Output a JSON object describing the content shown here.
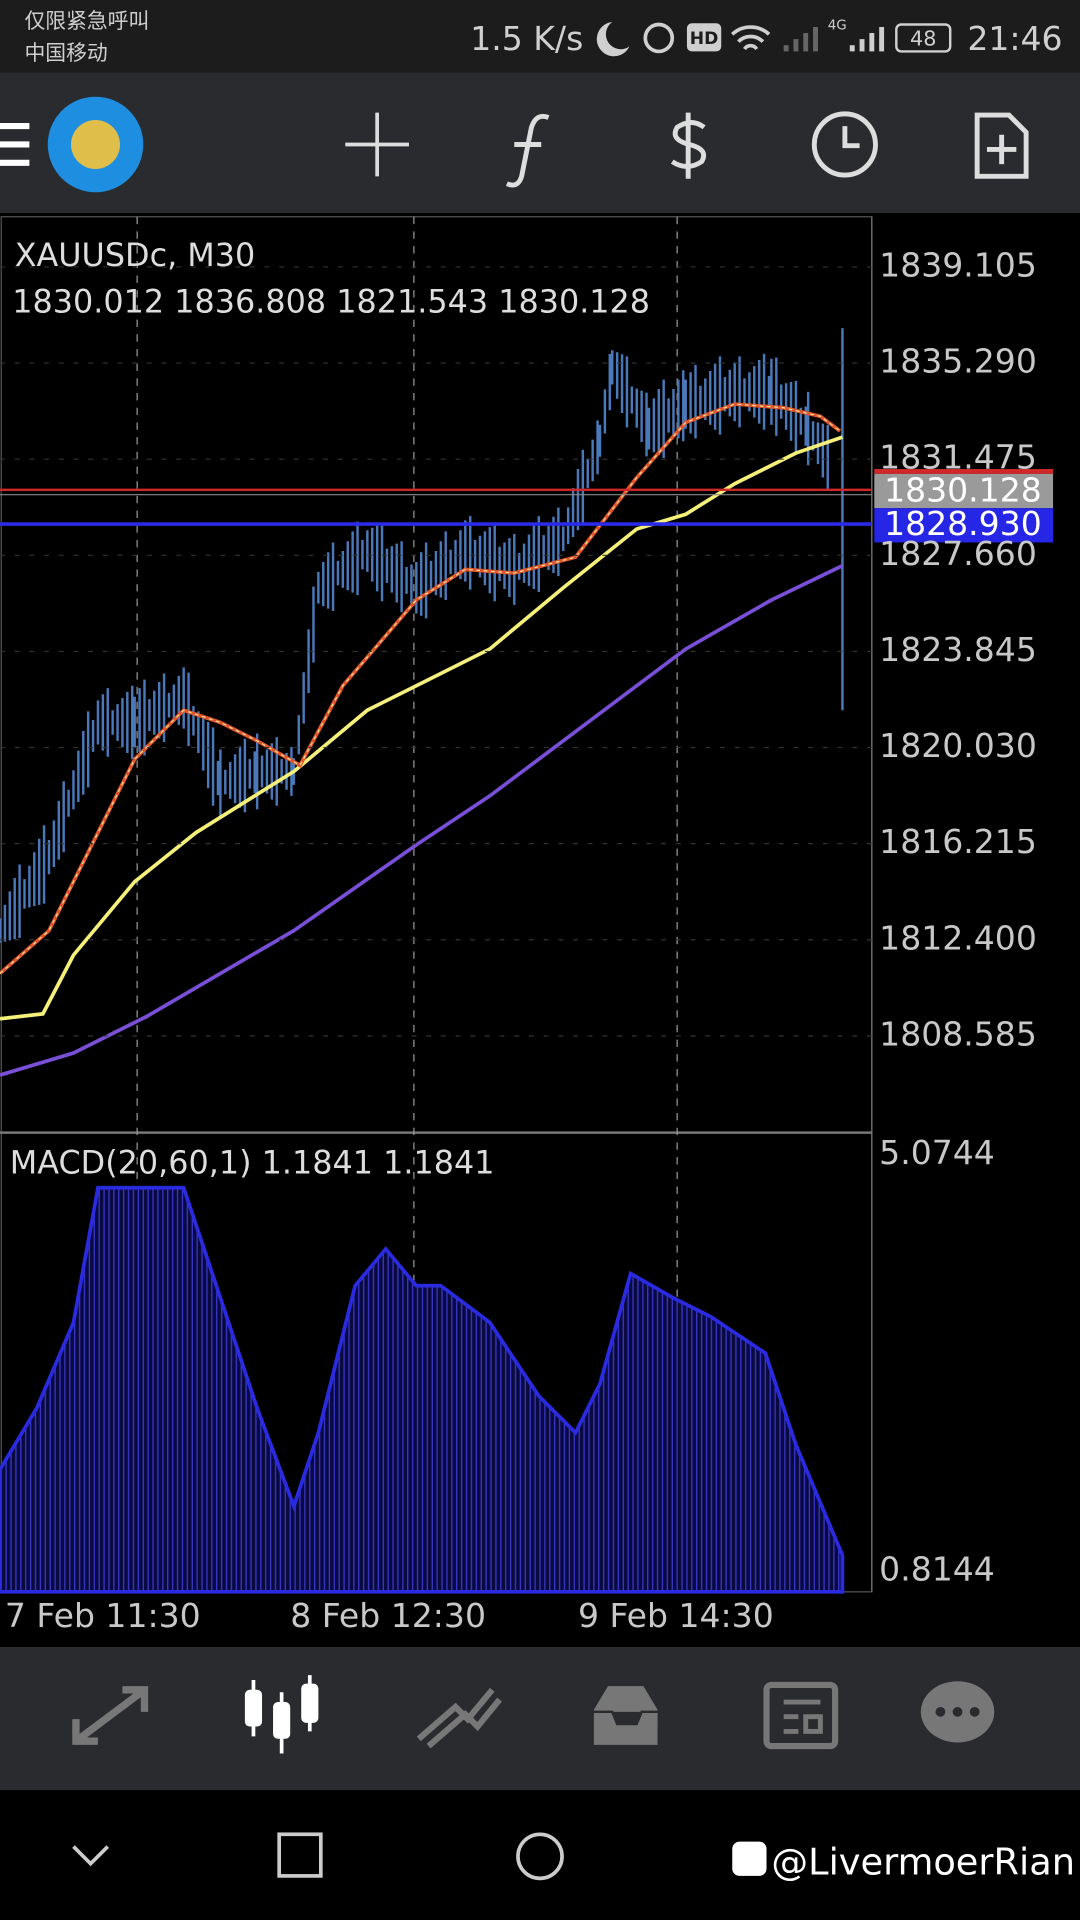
{
  "status_bar": {
    "line1": "仅限紧急呼叫",
    "line2": "中国移动",
    "speed": "1.5 K/s",
    "hd": "HD",
    "network": "4G",
    "battery": "48",
    "time": "21:46"
  },
  "chart": {
    "symbol": "XAUUSDc, M30",
    "ohlc": "1830.012 1836.808 1821.543 1830.128",
    "price_labels": [
      "1839.105",
      "1835.290",
      "1831.475",
      "1827.660",
      "1823.845",
      "1820.030",
      "1816.215",
      "1812.400",
      "1808.585"
    ],
    "bid_label": "1830.128",
    "line_label": "1828.930",
    "macd_title": "MACD(20,60,1) 1.1841 1.1841",
    "macd_top": "5.0744",
    "macd_bottom": "0.8144",
    "time_labels": [
      "7 Feb 11:30",
      "8 Feb 12:30",
      "9 Feb 14:30"
    ]
  },
  "watermark": "@LivermoerRian"
}
